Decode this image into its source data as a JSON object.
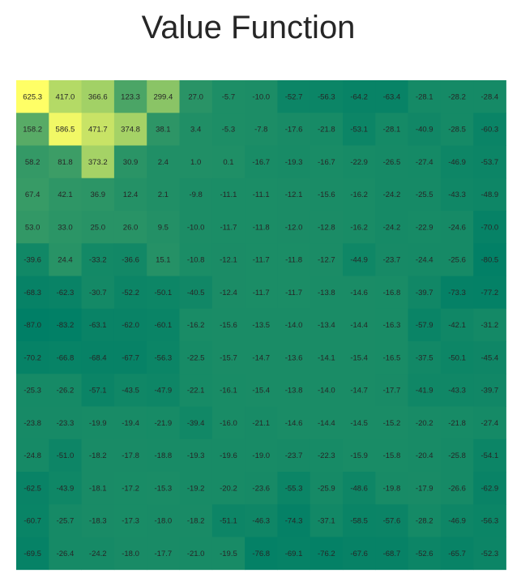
{
  "chart_data": {
    "type": "heatmap",
    "title": "Value Function",
    "rows": 15,
    "cols": 15,
    "colormap": [
      "#007f66",
      "#ffff66"
    ],
    "values": [
      [
        "625.3",
        "417.0",
        "366.6",
        "123.3",
        "299.4",
        "27.0",
        "-5.7",
        "-10.0",
        "-52.7",
        "-56.3",
        "-64.2",
        "-63.4",
        "-28.1",
        "-28.2",
        "-28.4"
      ],
      [
        "158.2",
        "586.5",
        "471.7",
        "374.8",
        "38.1",
        "3.4",
        "-5.3",
        "-7.8",
        "-17.6",
        "-21.8",
        "-53.1",
        "-28.1",
        "-40.9",
        "-28.5",
        "-60.3"
      ],
      [
        "58.2",
        "81.8",
        "373.2",
        "30.9",
        "2.4",
        "1.0",
        "0.1",
        "-16.7",
        "-19.3",
        "-16.7",
        "-22.9",
        "-26.5",
        "-27.4",
        "-46.9",
        "-53.7"
      ],
      [
        "67.4",
        "42.1",
        "36.9",
        "12.4",
        "2.1",
        "-9.8",
        "-11.1",
        "-11.1",
        "-12.1",
        "-15.6",
        "-16.2",
        "-24.2",
        "-25.5",
        "-43.3",
        "-48.9"
      ],
      [
        "53.0",
        "33.0",
        "25.0",
        "26.0",
        "9.5",
        "-10.0",
        "-11.7",
        "-11.8",
        "-12.0",
        "-12.8",
        "-16.2",
        "-24.2",
        "-22.9",
        "-24.6",
        "-70.0"
      ],
      [
        "-39.6",
        "24.4",
        "-33.2",
        "-36.6",
        "15.1",
        "-10.8",
        "-12.1",
        "-11.7",
        "-11.8",
        "-12.7",
        "-44.9",
        "-23.7",
        "-24.4",
        "-25.6",
        "-80.5"
      ],
      [
        "-68.3",
        "-62.3",
        "-30.7",
        "-52.2",
        "-50.1",
        "-40.5",
        "-12.4",
        "-11.7",
        "-11.7",
        "-13.8",
        "-14.6",
        "-16.8",
        "-39.7",
        "-73.3",
        "-77.2"
      ],
      [
        "-87.0",
        "-83.2",
        "-63.1",
        "-62.0",
        "-60.1",
        "-16.2",
        "-15.6",
        "-13.5",
        "-14.0",
        "-13.4",
        "-14.4",
        "-16.3",
        "-57.9",
        "-42.1",
        "-31.2"
      ],
      [
        "-70.2",
        "-66.8",
        "-68.4",
        "-67.7",
        "-56.3",
        "-22.5",
        "-15.7",
        "-14.7",
        "-13.6",
        "-14.1",
        "-15.4",
        "-16.5",
        "-37.5",
        "-50.1",
        "-45.4"
      ],
      [
        "-25.3",
        "-26.2",
        "-57.1",
        "-43.5",
        "-47.9",
        "-22.1",
        "-16.1",
        "-15.4",
        "-13.8",
        "-14.0",
        "-14.7",
        "-17.7",
        "-41.9",
        "-43.3",
        "-39.7"
      ],
      [
        "-23.8",
        "-23.3",
        "-19.9",
        "-19.4",
        "-21.9",
        "-39.4",
        "-16.0",
        "-21.1",
        "-14.6",
        "-14.4",
        "-14.5",
        "-15.2",
        "-20.2",
        "-21.8",
        "-27.4"
      ],
      [
        "-24.8",
        "-51.0",
        "-18.2",
        "-17.8",
        "-18.8",
        "-19.3",
        "-19.6",
        "-19.0",
        "-23.7",
        "-22.3",
        "-15.9",
        "-15.8",
        "-20.4",
        "-25.8",
        "-54.1"
      ],
      [
        "-62.5",
        "-43.9",
        "-18.1",
        "-17.2",
        "-15.3",
        "-19.2",
        "-20.2",
        "-23.6",
        "-55.3",
        "-25.9",
        "-48.6",
        "-19.8",
        "-17.9",
        "-26.6",
        "-62.9"
      ],
      [
        "-60.7",
        "-25.7",
        "-18.3",
        "-17.3",
        "-18.0",
        "-18.2",
        "-51.1",
        "-46.3",
        "-74.3",
        "-37.1",
        "-58.5",
        "-57.6",
        "-28.2",
        "-46.9",
        "-56.3"
      ],
      [
        "-69.5",
        "-26.4",
        "-24.2",
        "-18.0",
        "-17.7",
        "-21.0",
        "-19.5",
        "-76.8",
        "-69.1",
        "-76.2",
        "-67.6",
        "-68.7",
        "-52.6",
        "-65.7",
        "-52.3"
      ]
    ]
  }
}
